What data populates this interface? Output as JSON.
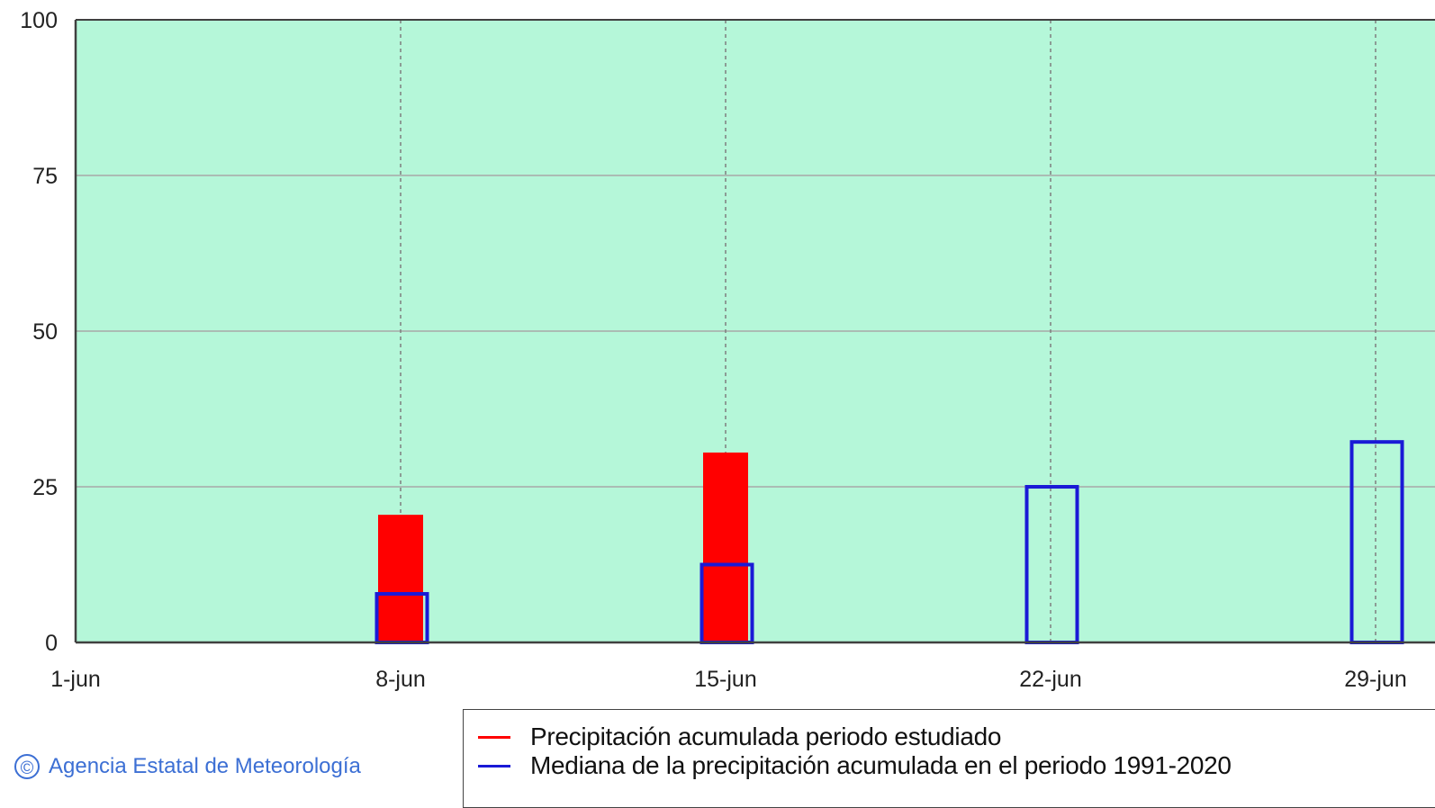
{
  "chart_data": {
    "type": "bar",
    "x_ticks": [
      "1-jun",
      "8-jun",
      "15-jun",
      "22-jun",
      "29-jun"
    ],
    "y_ticks": [
      "0",
      "25",
      "50",
      "75",
      "100"
    ],
    "ylim": [
      0,
      100
    ],
    "grid": true,
    "series": [
      {
        "name": "Precipitación acumulada periodo estudiado",
        "color": "#ff0000",
        "style": "filled",
        "points": [
          {
            "x": "8-jun",
            "y": 20.5
          },
          {
            "x": "15-jun",
            "y": 30.5
          }
        ]
      },
      {
        "name": "Mediana de la precipitación acumulada en el periodo 1991-2020",
        "color": "#1a1ad6",
        "style": "outline",
        "points": [
          {
            "x": "8-jun",
            "y": 7.8
          },
          {
            "x": "15-jun",
            "y": 12.5
          },
          {
            "x": "22-jun",
            "y": 25.0
          },
          {
            "x": "29-jun",
            "y": 32.2
          }
        ]
      }
    ],
    "colors": {
      "plot_background": "#b5f7d9"
    }
  },
  "credit": {
    "icon": "copyright-icon",
    "symbol": "©",
    "text": "Agencia Estatal de Meteorología"
  }
}
